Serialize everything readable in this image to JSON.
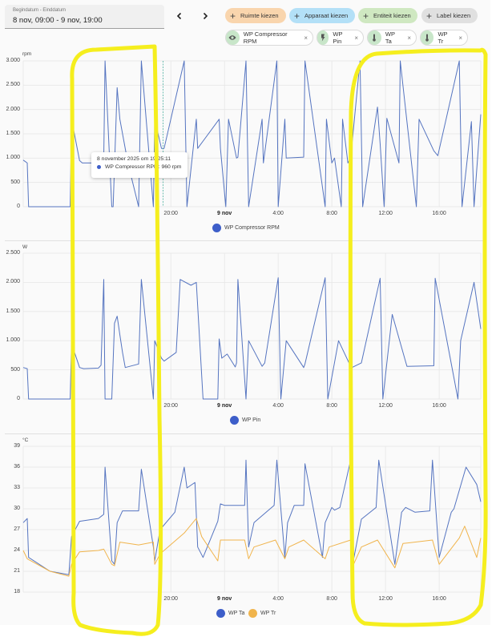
{
  "date_range": {
    "label": "Begindatum - Einddatum",
    "value": "8 nov, 09:00 - 9 nov, 19:00"
  },
  "nav": {
    "prev_icon": "chevron-left-icon",
    "next_icon": "chevron-right-icon"
  },
  "target_pickers": [
    {
      "label": "Ruimte kiezen",
      "icon": "plus-icon",
      "color": "#f9d5ad"
    },
    {
      "label": "Apparaat kiezen",
      "icon": "plus-icon",
      "color": "#b3e0f7"
    },
    {
      "label": "Entiteit kiezen",
      "icon": "plus-icon",
      "color": "#cfe8c1"
    },
    {
      "label": "Label kiezen",
      "icon": "plus-icon",
      "color": "#e0e0e0"
    }
  ],
  "selected_entities": [
    {
      "label": "WP Compressor RPM",
      "icon": "eye-icon"
    },
    {
      "label": "WP Pin",
      "icon": "flash-icon"
    },
    {
      "label": "WP Ta",
      "icon": "thermometer-icon"
    },
    {
      "label": "WP Tr",
      "icon": "thermometer-icon"
    }
  ],
  "remove_symbol": "×",
  "x_ticks": [
    "20:00",
    "9 nov",
    "4:00",
    "8:00",
    "12:00",
    "16:00"
  ],
  "tooltip": {
    "title": "8 november 2025 om 19:25:11",
    "series": "WP Compressor RPM",
    "value": "960 rpm",
    "text": "WP Compressor RPM: 960 rpm"
  },
  "colors": {
    "blue": "#3d5ec9",
    "line_blue": "#5574c0",
    "orange": "#f0b44c",
    "grid": "#e6e6e6",
    "annotation": "#f5ee1e"
  },
  "chart_data": [
    {
      "type": "line",
      "title": "WP Compressor RPM",
      "ylabel": "rpm",
      "ylim": [
        0,
        3000
      ],
      "yticks": [
        "0",
        "500",
        "1.000",
        "1.500",
        "2.000",
        "2.500",
        "3.000"
      ],
      "xticks": [
        "20:00",
        "9 nov",
        "4:00",
        "8:00",
        "12:00",
        "16:00"
      ],
      "legend": [
        "WP Compressor RPM"
      ],
      "series": [
        {
          "name": "WP Compressor RPM",
          "unit": "rpm",
          "x_hours": [
            0,
            0.3,
            0.4,
            3.5,
            3.6,
            4.2,
            4.4,
            5.6,
            5.8,
            6.0,
            6.1,
            6.6,
            6.7,
            7.0,
            7.2,
            7.5,
            7.8,
            8.6,
            8.8,
            9.7,
            9.8,
            10.3,
            10.5,
            12.0,
            12.2,
            12.9,
            13.0,
            14.6,
            14.7,
            15.1,
            15.3,
            15.9,
            16.0,
            16.6,
            16.8,
            17.8,
            17.9,
            18.9,
            19.0,
            19.5,
            19.6,
            20.9,
            21.0,
            22.5,
            22.6,
            23.0,
            23.2,
            23.7,
            23.8,
            24.2,
            24.4,
            25.1,
            25.3,
            26.4,
            26.6,
            26.9,
            27.1,
            28.0,
            28.1,
            29.3,
            29.5,
            30.6,
            30.9,
            32.5,
            32.7,
            33.4,
            33.6,
            34.1
          ],
          "values": [
            960,
            900,
            0,
            0,
            1800,
            950,
            900,
            900,
            960,
            1020,
            3000,
            0,
            0,
            2450,
            1800,
            1350,
            900,
            0,
            3000,
            0,
            1800,
            1200,
            1200,
            3000,
            0,
            1800,
            1200,
            1800,
            1200,
            0,
            1800,
            1000,
            1020,
            3000,
            0,
            1800,
            900,
            3000,
            0,
            1800,
            1000,
            1020,
            3000,
            0,
            1800,
            900,
            1000,
            0,
            1800,
            900,
            1000,
            3000,
            0,
            2050,
            1300,
            0,
            1820,
            900,
            3000,
            0,
            1800,
            1150,
            1050,
            3000,
            0,
            1750,
            0,
            1900
          ]
        }
      ]
    },
    {
      "type": "line",
      "title": "WP Pin",
      "ylabel": "W",
      "ylim": [
        0,
        2500
      ],
      "yticks": [
        "0",
        "500",
        "1.000",
        "1.500",
        "2.000",
        "2.500"
      ],
      "xticks": [
        "20:00",
        "9 nov",
        "4:00",
        "8:00",
        "12:00",
        "16:00"
      ],
      "legend": [
        "WP Pin"
      ],
      "series": [
        {
          "name": "WP Pin",
          "unit": "W",
          "x_hours": [
            0,
            0.3,
            0.4,
            3.5,
            3.6,
            4.2,
            4.5,
            5.6,
            5.8,
            6.0,
            6.1,
            6.6,
            6.8,
            7.0,
            7.2,
            7.4,
            7.6,
            8.6,
            8.8,
            9.7,
            9.8,
            10.3,
            10.5,
            11.4,
            11.7,
            12.5,
            12.9,
            13.4,
            14.5,
            14.6,
            14.8,
            15.2,
            15.8,
            15.9,
            16.0,
            16.6,
            16.8,
            17.8,
            18.0,
            19.0,
            19.2,
            19.6,
            20.9,
            21.0,
            22.5,
            22.7,
            23.5,
            24.4,
            24.5,
            25.2,
            26.6,
            26.8,
            27.5,
            28.5,
            28.6,
            30.6,
            30.7,
            32.4,
            32.6,
            33.6,
            34.1
          ],
          "values": [
            540,
            520,
            0,
            0,
            950,
            540,
            520,
            530,
            580,
            2050,
            0,
            0,
            1300,
            1420,
            1100,
            800,
            540,
            600,
            2050,
            0,
            1000,
            700,
            650,
            800,
            2050,
            1950,
            2000,
            0,
            0,
            1030,
            700,
            770,
            550,
            620,
            2050,
            0,
            1000,
            560,
            620,
            2080,
            0,
            1000,
            540,
            600,
            2080,
            0,
            1000,
            560,
            540,
            620,
            2070,
            0,
            1450,
            640,
            560,
            570,
            2070,
            0,
            1000,
            2000,
            1200
          ]
        }
      ]
    },
    {
      "type": "line",
      "title": "WP Ta / WP Tr",
      "ylabel": "°C",
      "ylim": [
        18,
        39
      ],
      "yticks": [
        "18",
        "21",
        "24",
        "27",
        "30",
        "33",
        "36",
        "39"
      ],
      "xticks": [
        "20:00",
        "9 nov",
        "4:00",
        "8:00",
        "12:00",
        "16:00"
      ],
      "legend": [
        "WP Ta",
        "WP Tr"
      ],
      "series": [
        {
          "name": "WP Ta",
          "unit": "°C",
          "x_hours": [
            0,
            0.3,
            0.4,
            2.0,
            3.4,
            3.6,
            4.2,
            5.6,
            6.0,
            6.1,
            6.6,
            6.8,
            7.0,
            7.4,
            8.6,
            8.8,
            9.7,
            9.8,
            10.2,
            11.3,
            12.0,
            12.2,
            12.8,
            13.0,
            13.4,
            14.5,
            14.7,
            15.0,
            16.5,
            16.6,
            16.8,
            17.2,
            18.7,
            18.9,
            19.5,
            19.7,
            20.2,
            20.9,
            21.0,
            22.3,
            22.5,
            23.0,
            23.2,
            23.6,
            24.4,
            24.6,
            25.2,
            26.3,
            26.5,
            27.7,
            28.2,
            28.5,
            29.2,
            30.3,
            30.5,
            31.0,
            31.9,
            32.1,
            33.0,
            33.8,
            34.1
          ],
          "values": [
            28,
            28.6,
            23,
            21,
            20.5,
            26,
            28.2,
            28.6,
            29.2,
            36,
            22.5,
            22,
            28,
            29.7,
            29.7,
            35.7,
            24.5,
            22.5,
            27,
            29.5,
            36,
            33,
            33.8,
            24.5,
            23,
            28.2,
            30.7,
            30.5,
            30.5,
            37,
            24.5,
            28,
            30.5,
            37,
            23,
            28,
            30.5,
            30.5,
            36.5,
            23,
            28,
            30.2,
            29.8,
            30.2,
            37,
            22.5,
            28.5,
            30.2,
            37,
            22,
            29.5,
            30.2,
            29.5,
            29.7,
            37,
            23,
            29.5,
            30,
            36,
            33.5,
            31
          ]
        },
        {
          "name": "WP Tr",
          "unit": "°C",
          "x_hours": [
            0,
            0.3,
            2.0,
            3.4,
            3.6,
            4.2,
            5.6,
            6.0,
            6.6,
            6.8,
            7.2,
            8.6,
            9.7,
            9.8,
            10.2,
            12.0,
            12.9,
            13.3,
            14.5,
            14.7,
            16.5,
            16.8,
            17.2,
            18.8,
            19.5,
            19.8,
            20.9,
            22.5,
            22.8,
            24.4,
            24.6,
            25.2,
            26.4,
            27.7,
            28.3,
            30.5,
            31.0,
            32.5,
            32.9,
            33.8,
            34.1
          ],
          "values": [
            24,
            22.8,
            21,
            20.3,
            22,
            23.8,
            24,
            24.2,
            22,
            21.8,
            25.2,
            24.8,
            25.2,
            22,
            23.5,
            26.5,
            28.6,
            26,
            22.5,
            25.5,
            25.5,
            22.8,
            24.5,
            25.5,
            22.8,
            24.5,
            25.5,
            22.8,
            24.5,
            25.5,
            21.9,
            24.5,
            25.5,
            21.5,
            25,
            25.5,
            22,
            25.8,
            27.5,
            23,
            25.8
          ]
        }
      ]
    }
  ]
}
